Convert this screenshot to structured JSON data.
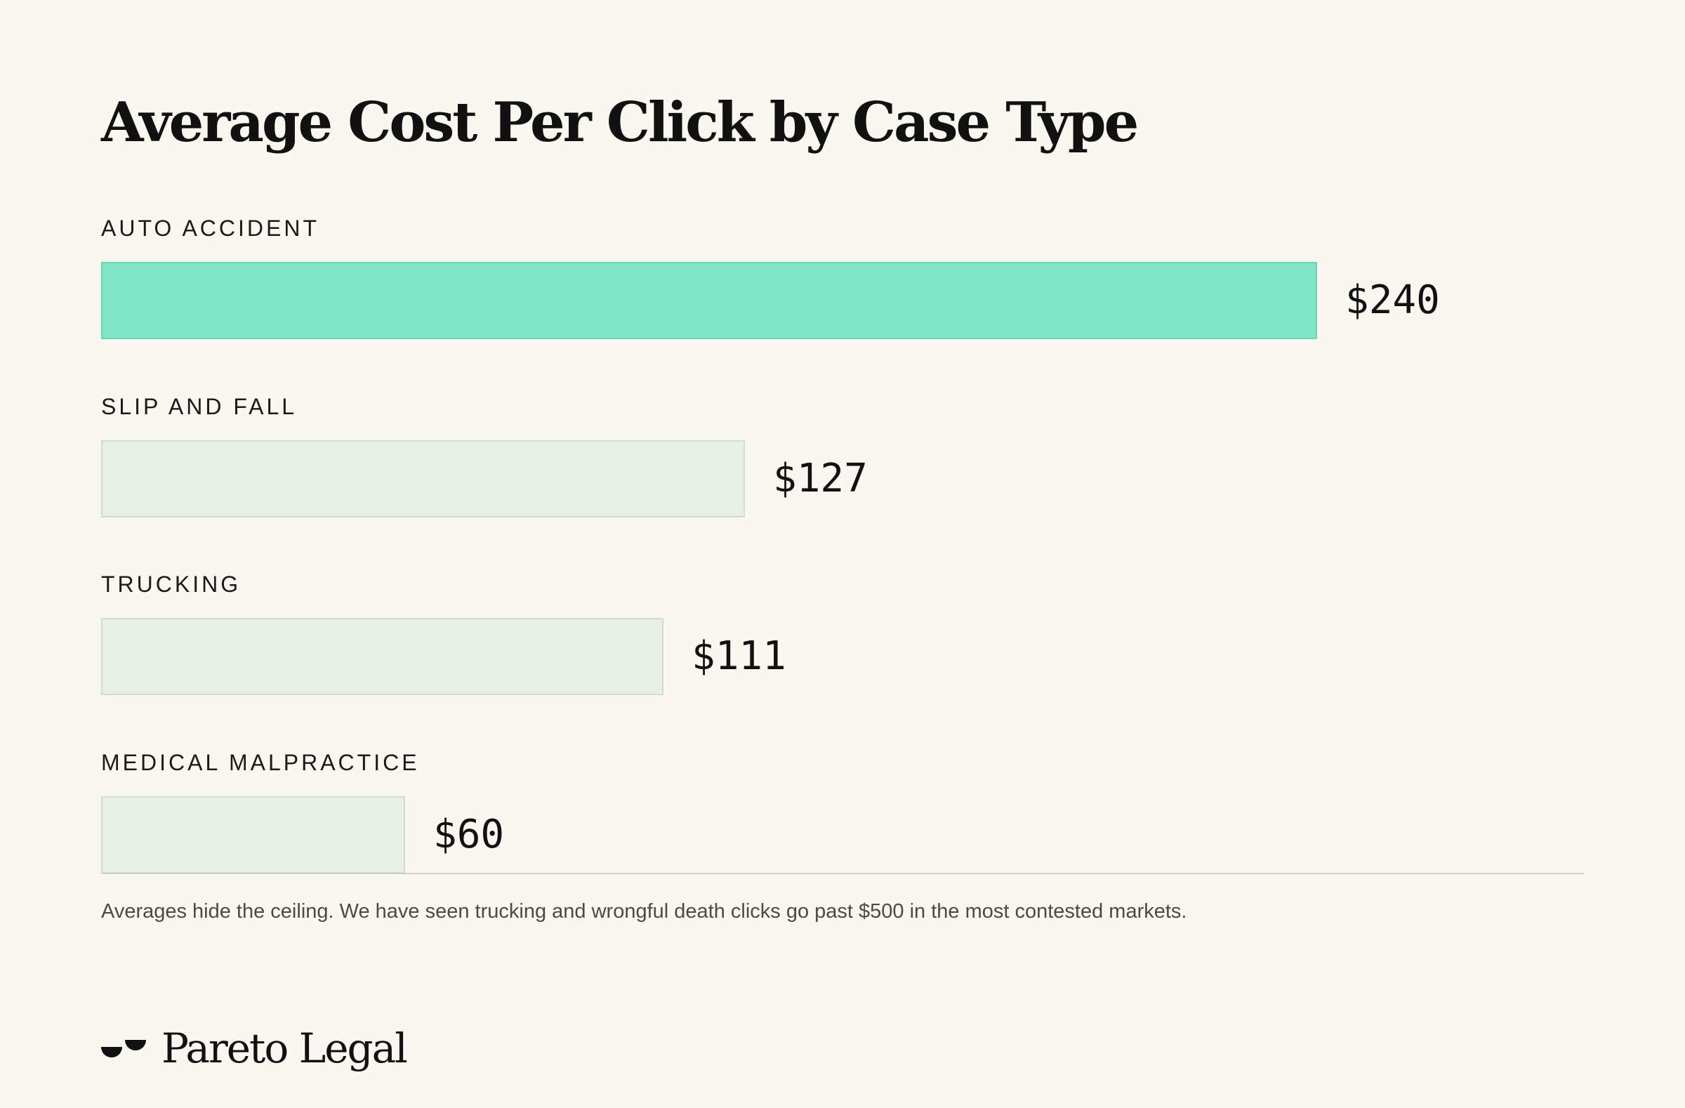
{
  "chart_data": {
    "type": "bar",
    "orientation": "horizontal",
    "title": "Average Cost Per Click by Case Type",
    "categories": [
      "AUTO ACCIDENT",
      "SLIP AND FALL",
      "TRUCKING",
      "MEDICAL MALPRACTICE"
    ],
    "values": [
      240,
      127,
      111,
      60
    ],
    "value_labels": [
      "$240",
      "$127",
      "$111",
      "$60"
    ],
    "highlight_index": 0,
    "xlim": [
      0,
      240
    ],
    "grid": false,
    "legend": "none",
    "colors": {
      "highlight": "#80e5c4",
      "default": "#e8efe5"
    }
  },
  "footnote": "Averages hide the ceiling. We have seen trucking and wrongful death clicks go past $500 in the most contested markets.",
  "brand": {
    "name": "Pareto Legal",
    "logo_icon": "pareto-legal-mark-icon"
  },
  "colors": {
    "background": "#faf7f1",
    "text": "#111111"
  }
}
